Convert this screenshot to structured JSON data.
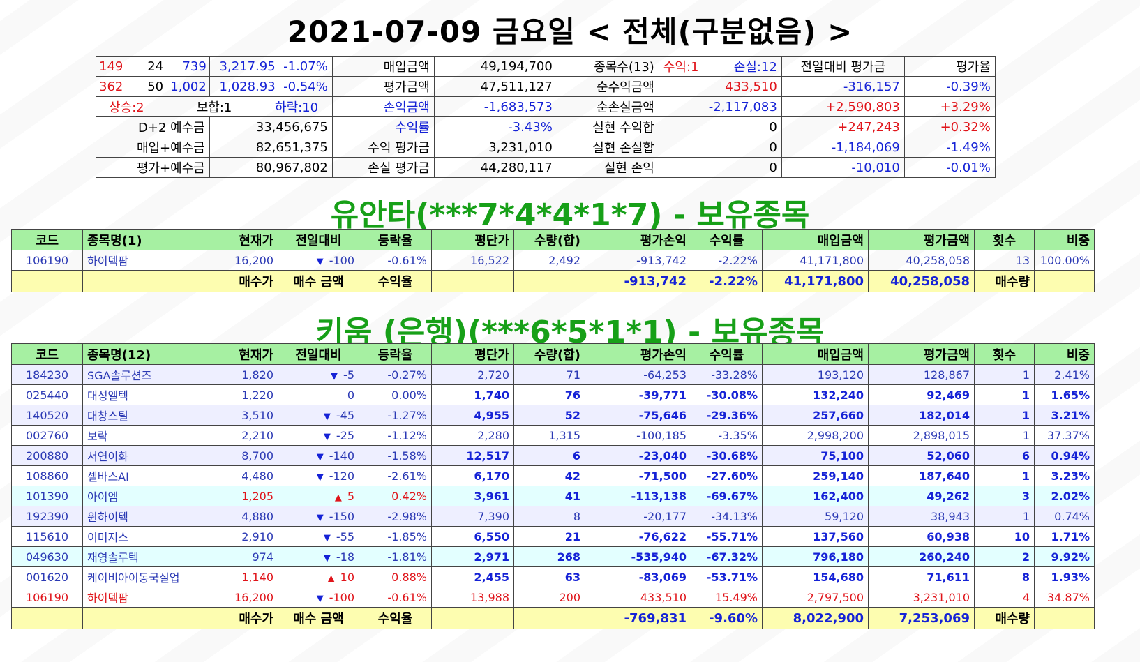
{
  "header": {
    "title": "2021-07-09 금요일 < 전체(구분없음) >"
  },
  "summary": {
    "rows": [
      {
        "a1": "149",
        "a2": "24",
        "a3": "739",
        "idx": "3,217.95",
        "idx_pct": "-1.07%",
        "k1": "매입금액",
        "v1": "49,194,700",
        "k2": "종목수(13)",
        "p": "수익:1",
        "m": "손실:12",
        "h1": "전일대비 평가금",
        "h2": "평가율"
      },
      {
        "a1": "362",
        "a2": "50",
        "a3": "1,002",
        "idx": "1,028.93",
        "idx_pct": "-0.54%",
        "k1": "평가금액",
        "v1": "47,511,127",
        "k2": "순수익금액",
        "v2": "433,510",
        "h1": "-316,157",
        "h2": "-0.39%"
      },
      {
        "up": "상승:2",
        "flat": "보합:1",
        "down": "하락:10",
        "k1": "손익금액",
        "v1": "-1,683,573",
        "k2": "순손실금액",
        "v2": "-2,117,083",
        "h1": "+2,590,803",
        "h2": "+3.29%"
      },
      {
        "k0": "D+2 예수금",
        "v0": "33,456,675",
        "k1": "수익률",
        "v1": "-3.43%",
        "k2": "실현 수익합",
        "v2": "0",
        "h1": "+247,243",
        "h2": "+0.32%"
      },
      {
        "k0": "매입+예수금",
        "v0": "82,651,375",
        "k1": "수익 평가금",
        "v1": "3,231,010",
        "k2": "실현 손실합",
        "v2": "0",
        "h1": "-1,184,069",
        "h2": "-1.49%"
      },
      {
        "k0": "평가+예수금",
        "v0": "80,967,802",
        "k1": "손실 평가금",
        "v1": "44,280,117",
        "k2": "실현 손익",
        "v2": "0",
        "h1": "-10,010",
        "h2": "-0.01%"
      }
    ]
  },
  "yuanta": {
    "title": "유안타(***7*4*4*1*7) - 보유종목",
    "headers": [
      "코드",
      "종목명(1)",
      "현재가",
      "전일대비",
      "등락율",
      "평단가",
      "수량(합)",
      "평가손익",
      "수익률",
      "매입금액",
      "평가금액",
      "횟수",
      "비중"
    ],
    "rows": [
      {
        "code": "106190",
        "name": "하이텍팜",
        "price": "16,200",
        "dir": "down",
        "chg": "-100",
        "rate": "-0.61%",
        "avg": "16,522",
        "qty": "2,492",
        "pl": "-913,742",
        "ret": "-2.22%",
        "buy": "41,171,800",
        "eval": "40,258,058",
        "cnt": "13",
        "wt": "100.00%"
      }
    ],
    "footer": {
      "l1": "매수가",
      "l2": "매수 금액",
      "l3": "수익율",
      "pl": "-913,742",
      "ret": "-2.22%",
      "buy": "41,171,800",
      "eval": "40,258,058",
      "l4": "매수량"
    }
  },
  "kiwoom": {
    "title": "키움 (은행)(***6*5*1*1) - 보유종목",
    "headers": [
      "코드",
      "종목명(12)",
      "현재가",
      "전일대비",
      "등락율",
      "평단가",
      "수량(합)",
      "평가손익",
      "수익률",
      "매입금액",
      "평가금액",
      "횟수",
      "비중"
    ],
    "rows": [
      {
        "code": "184230",
        "name": "SGA솔루션즈",
        "price": "1,820",
        "dir": "down",
        "chg": "-5",
        "rate": "-0.27%",
        "avg": "2,720",
        "qty": "71",
        "pl": "-64,253",
        "ret": "-33.28%",
        "buy": "193,120",
        "eval": "128,867",
        "cnt": "1",
        "wt": "2.41%",
        "bold": false,
        "bg": "lav"
      },
      {
        "code": "025440",
        "name": "대성엘텍",
        "price": "1,220",
        "dir": "none",
        "chg": "0",
        "rate": "0.00%",
        "avg": "1,740",
        "qty": "76",
        "pl": "-39,771",
        "ret": "-30.08%",
        "buy": "132,240",
        "eval": "92,469",
        "cnt": "1",
        "wt": "1.65%",
        "bold": true,
        "bg": "wht"
      },
      {
        "code": "140520",
        "name": "대창스틸",
        "price": "3,510",
        "dir": "down",
        "chg": "-45",
        "rate": "-1.27%",
        "avg": "4,955",
        "qty": "52",
        "pl": "-75,646",
        "ret": "-29.36%",
        "buy": "257,660",
        "eval": "182,014",
        "cnt": "1",
        "wt": "3.21%",
        "bold": true,
        "bg": "lav"
      },
      {
        "code": "002760",
        "name": "보락",
        "price": "2,210",
        "dir": "down",
        "chg": "-25",
        "rate": "-1.12%",
        "avg": "2,280",
        "qty": "1,315",
        "pl": "-100,185",
        "ret": "-3.35%",
        "buy": "2,998,200",
        "eval": "2,898,015",
        "cnt": "1",
        "wt": "37.37%",
        "bold": false,
        "bg": "wht"
      },
      {
        "code": "200880",
        "name": "서연이화",
        "price": "8,700",
        "dir": "down",
        "chg": "-140",
        "rate": "-1.58%",
        "avg": "12,517",
        "qty": "6",
        "pl": "-23,040",
        "ret": "-30.68%",
        "buy": "75,100",
        "eval": "52,060",
        "cnt": "6",
        "wt": "0.94%",
        "bold": true,
        "bg": "lav"
      },
      {
        "code": "108860",
        "name": "셀바스AI",
        "price": "4,480",
        "dir": "down",
        "chg": "-120",
        "rate": "-2.61%",
        "avg": "6,170",
        "qty": "42",
        "pl": "-71,500",
        "ret": "-27.60%",
        "buy": "259,140",
        "eval": "187,640",
        "cnt": "1",
        "wt": "3.23%",
        "bold": true,
        "bg": "wht"
      },
      {
        "code": "101390",
        "name": "아이엠",
        "price": "1,205",
        "dir": "up",
        "chg": "5",
        "rate": "0.42%",
        "avg": "3,961",
        "qty": "41",
        "pl": "-113,138",
        "ret": "-69.67%",
        "buy": "162,400",
        "eval": "49,262",
        "cnt": "3",
        "wt": "2.02%",
        "bold": true,
        "bg": "cyn"
      },
      {
        "code": "192390",
        "name": "윈하이텍",
        "price": "4,880",
        "dir": "down",
        "chg": "-150",
        "rate": "-2.98%",
        "avg": "7,390",
        "qty": "8",
        "pl": "-20,177",
        "ret": "-34.13%",
        "buy": "59,120",
        "eval": "38,943",
        "cnt": "1",
        "wt": "0.74%",
        "bold": false,
        "bg": "lav"
      },
      {
        "code": "115610",
        "name": "이미지스",
        "price": "2,910",
        "dir": "down",
        "chg": "-55",
        "rate": "-1.85%",
        "avg": "6,550",
        "qty": "21",
        "pl": "-76,622",
        "ret": "-55.71%",
        "buy": "137,560",
        "eval": "60,938",
        "cnt": "10",
        "wt": "1.71%",
        "bold": true,
        "bg": "wht"
      },
      {
        "code": "049630",
        "name": "재영솔루텍",
        "price": "974",
        "dir": "down",
        "chg": "-18",
        "rate": "-1.81%",
        "avg": "2,971",
        "qty": "268",
        "pl": "-535,940",
        "ret": "-67.32%",
        "buy": "796,180",
        "eval": "260,240",
        "cnt": "2",
        "wt": "9.92%",
        "bold": true,
        "bg": "cyn"
      },
      {
        "code": "001620",
        "name": "케이비아이동국실업",
        "price": "1,140",
        "dir": "up",
        "chg": "10",
        "rate": "0.88%",
        "avg": "2,455",
        "qty": "63",
        "pl": "-83,069",
        "ret": "-53.71%",
        "buy": "154,680",
        "eval": "71,611",
        "cnt": "8",
        "wt": "1.93%",
        "bold": true,
        "bg": "wht"
      },
      {
        "code": "106190",
        "name": "하이텍팜",
        "price": "16,200",
        "dir": "down",
        "chg": "-100",
        "rate": "-0.61%",
        "avg": "13,988",
        "qty": "200",
        "pl": "433,510",
        "ret": "15.49%",
        "buy": "2,797,500",
        "eval": "3,231,010",
        "cnt": "4",
        "wt": "34.87%",
        "bold": false,
        "bg": "wht",
        "profit": true
      }
    ],
    "footer": {
      "l1": "매수가",
      "l2": "매수 금액",
      "l3": "수익율",
      "pl": "-769,831",
      "ret": "-9.60%",
      "buy": "8,022,900",
      "eval": "7,253,069",
      "l4": "매수량"
    }
  },
  "colors": {
    "accent_green": "#17a018",
    "header_green": "#a6f0a2",
    "footer_yellow": "#fdfdb0",
    "up_red": "#e0141a",
    "down_blue": "#1522d6"
  }
}
